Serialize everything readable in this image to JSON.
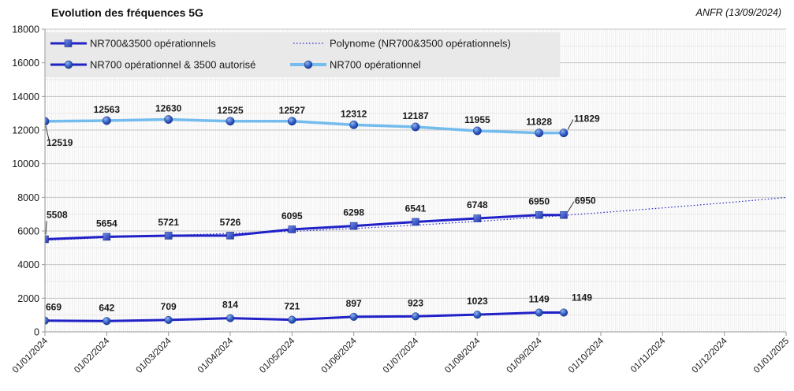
{
  "chart_data": {
    "type": "line",
    "title": "Evolution des fréquences 5G",
    "source": "ANFR (13/09/2024)",
    "x_tick_labels": [
      "01/01/2024",
      "01/02/2024",
      "01/03/2024",
      "01/04/2024",
      "01/05/2024",
      "01/06/2024",
      "01/07/2024",
      "01/08/2024",
      "01/09/2024",
      "01/10/2024",
      "01/11/2024",
      "01/12/2024",
      "01/01/2025"
    ],
    "ylim": [
      0,
      18000
    ],
    "y_major_step": 2000,
    "y_minor_step": 1000,
    "legend_position": "top-left inside plot, gray box, two columns",
    "point_dates_months": [
      0,
      1,
      2,
      3,
      4,
      5,
      6,
      7,
      8,
      8.4
    ],
    "last_point_date": "13/09/2024",
    "series": [
      {
        "name": "NR700&3500 opérationnels",
        "marker": "square",
        "color": "#2121c8",
        "line_width": 3,
        "values": [
          5508,
          5654,
          5721,
          5726,
          6095,
          6298,
          6541,
          6748,
          6950,
          6950
        ]
      },
      {
        "name": "NR700 opérationnel & 3500 autorisé",
        "marker": "circle",
        "color": "#2121c8",
        "line_width": 3,
        "values": [
          669,
          642,
          709,
          814,
          721,
          897,
          923,
          1023,
          1149,
          1149
        ]
      },
      {
        "name": "NR700 opérationnel",
        "marker": "circle",
        "color": "#74bcee",
        "line_width": 3.5,
        "values": [
          12519,
          12563,
          12630,
          12525,
          12527,
          12312,
          12187,
          11955,
          11828,
          11829
        ]
      }
    ],
    "trend": {
      "name": "Polynome (NR700&3500 opérationnels)",
      "color": "#2222c2",
      "style": "dotted",
      "x_months": [
        0,
        1,
        2,
        3,
        4,
        5,
        6,
        7,
        8,
        9,
        10,
        11,
        12
      ],
      "values": [
        5450,
        5600,
        5735,
        5855,
        5975,
        6145,
        6345,
        6570,
        6815,
        7090,
        7370,
        7670,
        7990
      ]
    },
    "legend": [
      {
        "label": "NR700&3500 opérationnels",
        "sample": "line-square",
        "color": "#2121c8"
      },
      {
        "label": "Polynome (NR700&3500 opérationnels)",
        "sample": "dotted-line",
        "color": "#2222c2"
      },
      {
        "label": "NR700 opérationnel & 3500 autorisé",
        "sample": "line-circle",
        "color": "#2121c8"
      },
      {
        "label": "NR700 opérationnel",
        "sample": "line-circle",
        "color": "#74bcee"
      }
    ],
    "colors": {
      "dark_blue": "#2121c8",
      "light_blue": "#74bcee",
      "legend_bg": "#e9e9e9",
      "grid_major": "#c6c6c6",
      "grid_minor": "#e9e9e9",
      "axis": "#9a9a9a",
      "label_text": "#1a1a1a",
      "hatch": "#ededed"
    }
  }
}
